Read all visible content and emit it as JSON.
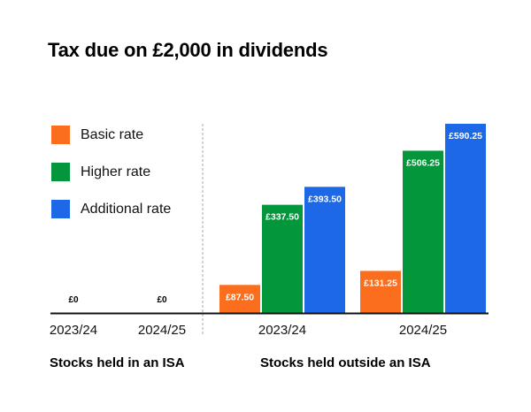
{
  "chart_data": {
    "type": "bar",
    "title": "Tax due on £2,000 in dividends",
    "xlabel": "",
    "ylabel": "",
    "ylim": [
      0,
      590.25
    ],
    "grid": false,
    "legend_position": "left",
    "groups": [
      {
        "label": "Stocks held in an ISA",
        "categories": [
          "2023/24",
          "2024/25"
        ],
        "series": [
          {
            "name": "Basic rate",
            "values": [
              0,
              0
            ]
          },
          {
            "name": "Higher rate",
            "values": [
              0,
              0
            ]
          },
          {
            "name": "Additional rate",
            "values": [
              0,
              0
            ]
          }
        ],
        "zero_labels": [
          "£0",
          "£0"
        ]
      },
      {
        "label": "Stocks held outside an ISA",
        "categories": [
          "2023/24",
          "2024/25"
        ],
        "series": [
          {
            "name": "Basic rate",
            "values": [
              87.5,
              131.25
            ],
            "labels": [
              "£87.50",
              "£131.25"
            ]
          },
          {
            "name": "Higher rate",
            "values": [
              337.5,
              506.25
            ],
            "labels": [
              "£337.50",
              "£506.25"
            ]
          },
          {
            "name": "Additional rate",
            "values": [
              393.5,
              590.25
            ],
            "labels": [
              "£393.50",
              "£590.25"
            ]
          }
        ]
      }
    ],
    "legend": [
      {
        "name": "Basic rate",
        "color": "#fa6e1e"
      },
      {
        "name": "Higher rate",
        "color": "#03963a"
      },
      {
        "name": "Additional rate",
        "color": "#1d68e6"
      }
    ]
  }
}
